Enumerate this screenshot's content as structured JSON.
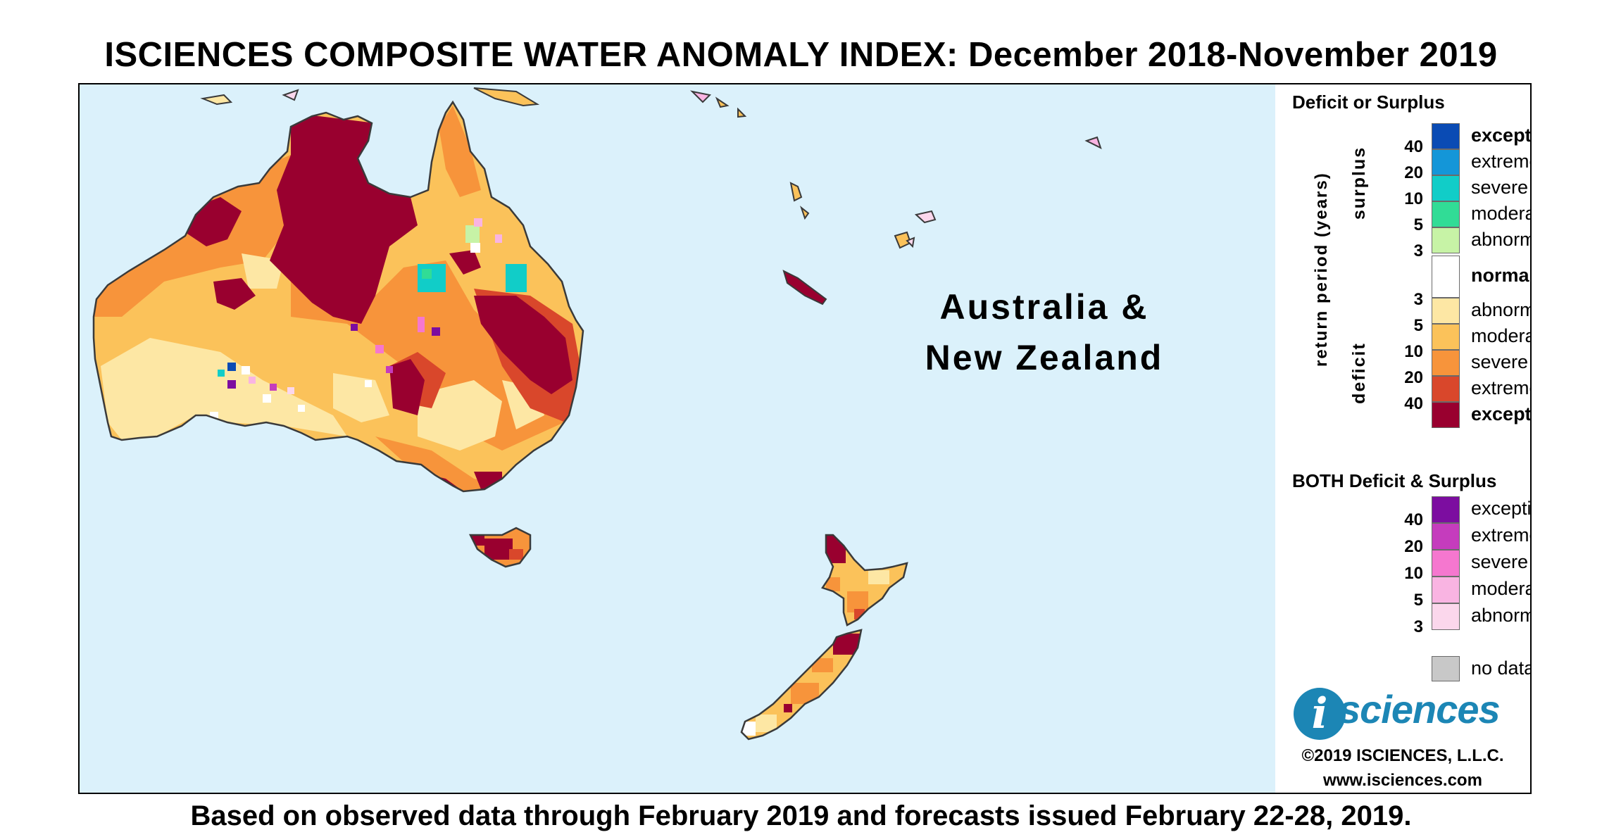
{
  "title": "ISCIENCES COMPOSITE WATER ANOMALY INDEX: December 2018-November 2019",
  "footer": "Based on observed data through February 2019 and forecasts issued February 22-28, 2019.",
  "region_label": [
    "Australia &",
    "New Zealand"
  ],
  "colors": {
    "ocean": "#dbf1fb",
    "land_outline": "#3a3a3a",
    "deficit_abnormal": "#fde7a4",
    "deficit_moderate": "#fbc25a",
    "deficit_severe": "#f7943b",
    "deficit_extreme": "#d9472b",
    "deficit_exceptional": "#99002f",
    "surplus_abnormal": "#c7f3a6",
    "surplus_moderate": "#31dc96",
    "surplus_severe": "#11cdc8",
    "surplus_extreme": "#1496d8",
    "surplus_exceptional": "#0a4bb4",
    "both_abnormal": "#fbd7ec",
    "both_moderate": "#f9b4e2",
    "both_severe": "#f577cf",
    "both_extreme": "#c53cbd",
    "both_exceptional": "#7c0da0",
    "no_data": "#c8c8c8",
    "normal": "#ffffff"
  },
  "legend": {
    "heading_deficit_surplus": "Deficit or Surplus",
    "axis_title": "return period (years)",
    "surplus_label": "surplus",
    "deficit_label": "deficit",
    "surplus_items": [
      {
        "label": "exceptional",
        "color_key": "surplus_exceptional",
        "bold": true
      },
      {
        "label": "extreme",
        "color_key": "surplus_extreme",
        "bold": false
      },
      {
        "label": "severe",
        "color_key": "surplus_severe",
        "bold": false
      },
      {
        "label": "moderate",
        "color_key": "surplus_moderate",
        "bold": false
      },
      {
        "label": "abnormal",
        "color_key": "surplus_abnormal",
        "bold": false
      }
    ],
    "normal_label": "normal",
    "deficit_items": [
      {
        "label": "abnormal",
        "color_key": "deficit_abnormal",
        "bold": false
      },
      {
        "label": "moderate",
        "color_key": "deficit_moderate",
        "bold": false
      },
      {
        "label": "severe",
        "color_key": "deficit_severe",
        "bold": false
      },
      {
        "label": "extreme",
        "color_key": "deficit_extreme",
        "bold": false
      },
      {
        "label": "exceptional",
        "color_key": "deficit_exceptional",
        "bold": true
      }
    ],
    "surplus_ticks": [
      "40",
      "20",
      "10",
      "5",
      "3"
    ],
    "deficit_ticks": [
      "3",
      "5",
      "10",
      "20",
      "40"
    ],
    "heading_both": "BOTH Deficit & Surplus",
    "both_items": [
      {
        "label": "exceptional",
        "color_key": "both_exceptional"
      },
      {
        "label": "extreme",
        "color_key": "both_extreme"
      },
      {
        "label": "severe",
        "color_key": "both_severe"
      },
      {
        "label": "moderate",
        "color_key": "both_moderate"
      },
      {
        "label": "abnormal",
        "color_key": "both_abnormal"
      }
    ],
    "both_ticks": [
      "40",
      "20",
      "10",
      "5",
      "3"
    ],
    "no_data_label": "no data",
    "logo_i": "i",
    "logo_word": "sciences",
    "copyright": "©2019 ISCIENCES, L.L.C.",
    "website": "www.isciences.com"
  }
}
